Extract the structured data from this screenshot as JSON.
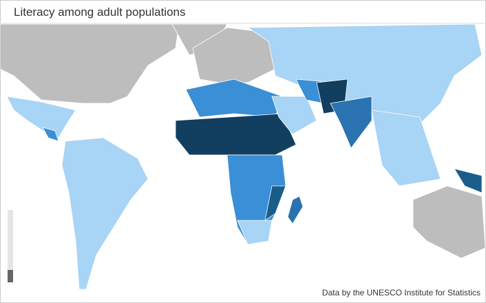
{
  "header": {
    "title": "Literacy among adult populations"
  },
  "credit": "Data by the UNESCO Institute for Statistics"
}
